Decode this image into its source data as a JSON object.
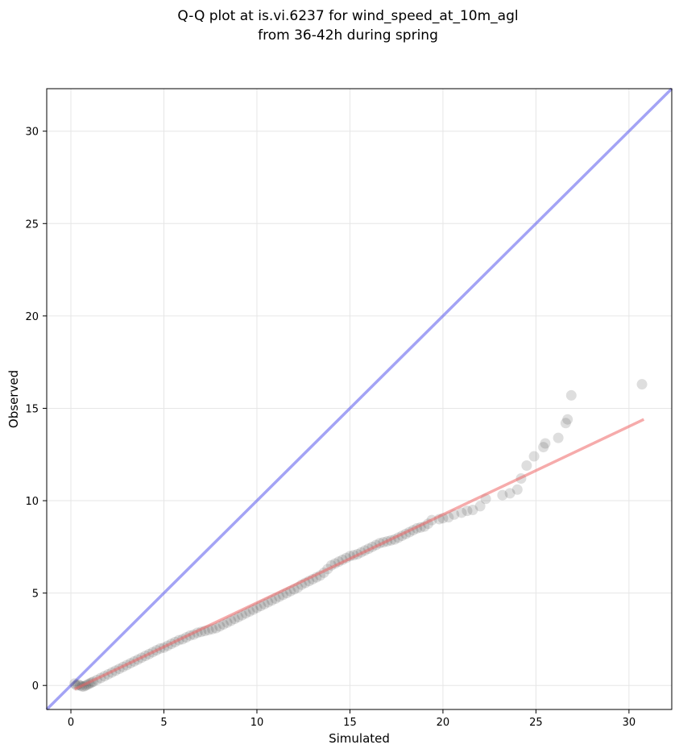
{
  "chart_data": {
    "type": "scatter",
    "title_lines": [
      "Q-Q plot at is.vi.6237 for wind_speed_at_10m_agl",
      "from 36-42h during spring"
    ],
    "xlabel": "Simulated",
    "ylabel": "Observed",
    "xlim": [
      -1.3,
      32.3
    ],
    "ylim": [
      -1.3,
      32.3
    ],
    "xticks": [
      0,
      5,
      10,
      15,
      20,
      25,
      30
    ],
    "yticks": [
      0,
      5,
      10,
      15,
      20,
      25,
      30
    ],
    "grid": true,
    "identity_line": {
      "color": "#6666ee",
      "points": [
        [
          -1.3,
          -1.3
        ],
        [
          32.3,
          32.3
        ]
      ]
    },
    "fit_line": {
      "color": "#ee6666",
      "points": [
        [
          0.2,
          -0.2
        ],
        [
          30.8,
          14.4
        ]
      ]
    },
    "point_color": "#333333",
    "points": [
      [
        0.2,
        0.1
      ],
      [
        0.3,
        0.0
      ],
      [
        0.4,
        0.05
      ],
      [
        0.5,
        0.0
      ],
      [
        0.6,
        -0.05
      ],
      [
        0.7,
        -0.05
      ],
      [
        0.8,
        0.0
      ],
      [
        0.9,
        0.05
      ],
      [
        1.0,
        0.1
      ],
      [
        1.1,
        0.15
      ],
      [
        1.2,
        0.2
      ],
      [
        1.4,
        0.3
      ],
      [
        1.6,
        0.4
      ],
      [
        1.8,
        0.5
      ],
      [
        2.0,
        0.6
      ],
      [
        2.2,
        0.7
      ],
      [
        2.4,
        0.8
      ],
      [
        2.6,
        0.9
      ],
      [
        2.8,
        1.0
      ],
      [
        3.0,
        1.1
      ],
      [
        3.2,
        1.2
      ],
      [
        3.4,
        1.3
      ],
      [
        3.6,
        1.4
      ],
      [
        3.8,
        1.5
      ],
      [
        4.0,
        1.6
      ],
      [
        4.2,
        1.7
      ],
      [
        4.4,
        1.8
      ],
      [
        4.6,
        1.9
      ],
      [
        4.8,
        2.0
      ],
      [
        5.0,
        2.05
      ],
      [
        5.2,
        2.15
      ],
      [
        5.4,
        2.25
      ],
      [
        5.6,
        2.35
      ],
      [
        5.8,
        2.45
      ],
      [
        6.0,
        2.5
      ],
      [
        6.2,
        2.6
      ],
      [
        6.4,
        2.7
      ],
      [
        6.6,
        2.75
      ],
      [
        6.8,
        2.85
      ],
      [
        7.0,
        2.9
      ],
      [
        7.2,
        2.95
      ],
      [
        7.4,
        3.0
      ],
      [
        7.6,
        3.05
      ],
      [
        7.8,
        3.1
      ],
      [
        8.0,
        3.2
      ],
      [
        8.2,
        3.3
      ],
      [
        8.4,
        3.4
      ],
      [
        8.6,
        3.5
      ],
      [
        8.8,
        3.6
      ],
      [
        9.0,
        3.7
      ],
      [
        9.2,
        3.8
      ],
      [
        9.4,
        3.9
      ],
      [
        9.6,
        4.0
      ],
      [
        9.8,
        4.1
      ],
      [
        10.0,
        4.2
      ],
      [
        10.2,
        4.3
      ],
      [
        10.4,
        4.4
      ],
      [
        10.6,
        4.5
      ],
      [
        10.8,
        4.6
      ],
      [
        11.0,
        4.7
      ],
      [
        11.2,
        4.8
      ],
      [
        11.4,
        4.9
      ],
      [
        11.6,
        5.0
      ],
      [
        11.8,
        5.1
      ],
      [
        12.0,
        5.2
      ],
      [
        12.2,
        5.3
      ],
      [
        12.4,
        5.45
      ],
      [
        12.6,
        5.55
      ],
      [
        12.8,
        5.65
      ],
      [
        13.0,
        5.75
      ],
      [
        13.2,
        5.85
      ],
      [
        13.4,
        5.95
      ],
      [
        13.6,
        6.1
      ],
      [
        13.8,
        6.3
      ],
      [
        14.0,
        6.5
      ],
      [
        14.2,
        6.6
      ],
      [
        14.4,
        6.7
      ],
      [
        14.6,
        6.8
      ],
      [
        14.8,
        6.9
      ],
      [
        15.0,
        7.0
      ],
      [
        15.2,
        7.05
      ],
      [
        15.4,
        7.1
      ],
      [
        15.6,
        7.2
      ],
      [
        15.8,
        7.3
      ],
      [
        16.0,
        7.4
      ],
      [
        16.2,
        7.5
      ],
      [
        16.4,
        7.6
      ],
      [
        16.6,
        7.7
      ],
      [
        16.8,
        7.75
      ],
      [
        17.0,
        7.8
      ],
      [
        17.2,
        7.85
      ],
      [
        17.4,
        7.9
      ],
      [
        17.6,
        8.0
      ],
      [
        17.8,
        8.1
      ],
      [
        18.0,
        8.2
      ],
      [
        18.2,
        8.3
      ],
      [
        18.4,
        8.4
      ],
      [
        18.6,
        8.5
      ],
      [
        18.8,
        8.55
      ],
      [
        19.0,
        8.6
      ],
      [
        19.2,
        8.75
      ],
      [
        19.4,
        8.95
      ],
      [
        19.8,
        9.0
      ],
      [
        20.0,
        9.05
      ],
      [
        20.3,
        9.1
      ],
      [
        20.6,
        9.25
      ],
      [
        21.0,
        9.35
      ],
      [
        21.3,
        9.45
      ],
      [
        21.6,
        9.5
      ],
      [
        22.0,
        9.7
      ],
      [
        22.3,
        10.1
      ],
      [
        23.2,
        10.3
      ],
      [
        23.6,
        10.4
      ],
      [
        24.0,
        10.6
      ],
      [
        24.2,
        11.2
      ],
      [
        24.5,
        11.9
      ],
      [
        24.9,
        12.4
      ],
      [
        25.4,
        12.9
      ],
      [
        25.5,
        13.1
      ],
      [
        26.2,
        13.4
      ],
      [
        26.6,
        14.2
      ],
      [
        26.7,
        14.4
      ],
      [
        26.9,
        15.7
      ],
      [
        30.7,
        16.3
      ]
    ]
  }
}
